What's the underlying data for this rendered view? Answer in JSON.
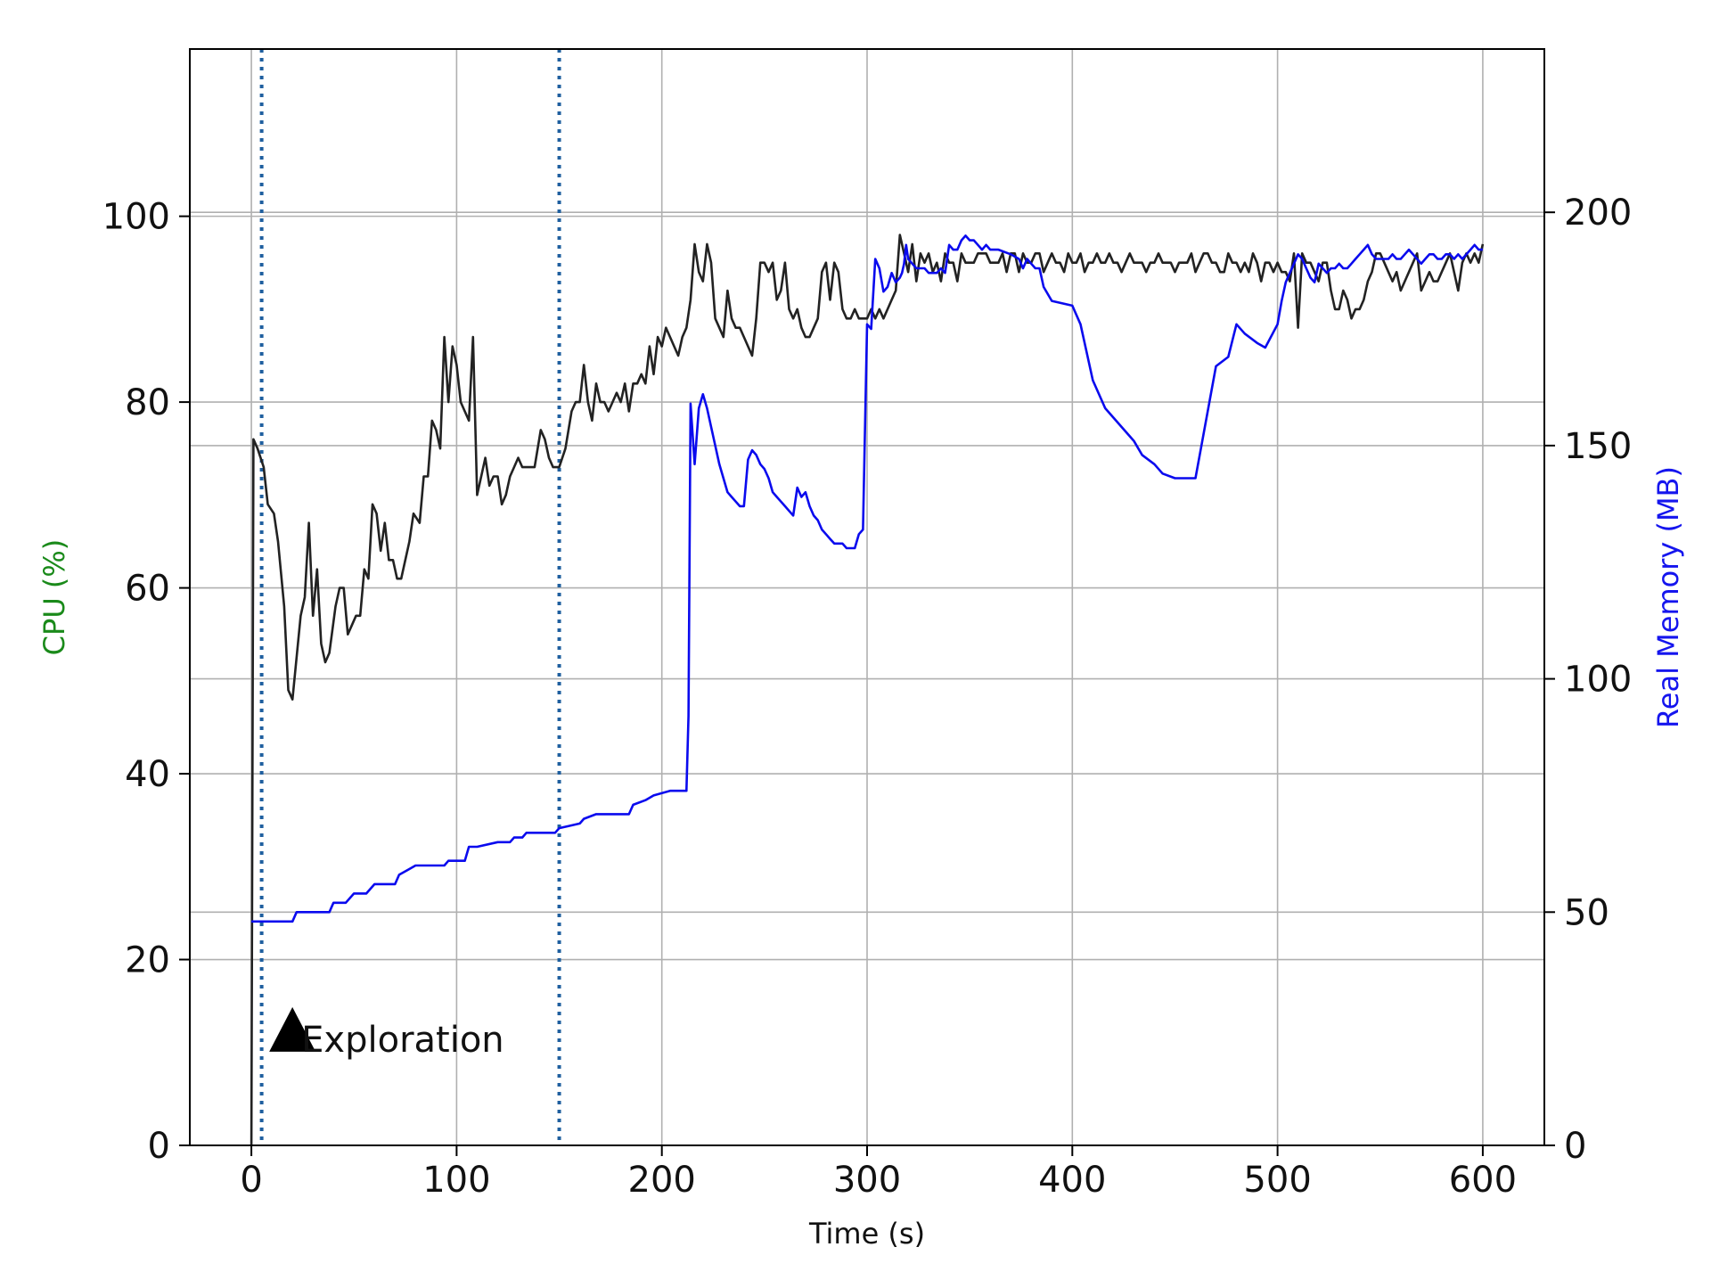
{
  "chart_data": {
    "type": "line",
    "xlabel": "Time (s)",
    "ylabel_left": "CPU (%)",
    "ylabel_right": "Real Memory (MB)",
    "xlim": [
      -30,
      630
    ],
    "ylim_left": [
      0,
      118
    ],
    "ylim_right": [
      0,
      235
    ],
    "x_ticks": [
      0,
      100,
      200,
      300,
      400,
      500,
      600
    ],
    "y_ticks_left": [
      0,
      20,
      40,
      60,
      80,
      100
    ],
    "y_ticks_right": [
      0,
      50,
      100,
      150,
      200
    ],
    "grid": true,
    "colors": {
      "cpu_line": "#222222",
      "memory_line": "#0a0aee",
      "left_axis_label": "#1a8a1a",
      "right_axis_label": "#1515ee",
      "phase_markers": "#1f5f9f",
      "grid": "#b0b0b0"
    },
    "phase_markers_x": [
      5,
      150
    ],
    "annotation": {
      "text": "Exploration",
      "x": 20,
      "y": 12
    },
    "series": [
      {
        "key": "cpu",
        "axis": "left",
        "x": [
          0,
          1,
          3,
          6,
          8,
          11,
          13,
          16,
          18,
          20,
          24,
          26,
          28,
          30,
          32,
          34,
          36,
          38,
          41,
          43,
          45,
          47,
          49,
          51,
          53,
          55,
          57,
          59,
          61,
          63,
          65,
          67,
          69,
          71,
          73,
          75,
          77,
          79,
          82,
          84,
          86,
          88,
          90,
          92,
          94,
          96,
          98,
          100,
          102,
          104,
          106,
          108,
          110,
          112,
          114,
          116,
          118,
          120,
          122,
          124,
          126,
          128,
          130,
          132,
          135,
          138,
          141,
          143,
          145,
          147,
          150,
          153,
          156,
          158,
          160,
          162,
          164,
          166,
          168,
          170,
          172,
          174,
          176,
          178,
          180,
          182,
          184,
          186,
          188,
          190,
          192,
          194,
          196,
          198,
          200,
          202,
          204,
          206,
          208,
          210,
          212,
          214,
          216,
          218,
          220,
          222,
          224,
          226,
          228,
          230,
          232,
          234,
          236,
          238,
          240,
          242,
          244,
          246,
          248,
          250,
          252,
          254,
          256,
          258,
          260,
          262,
          264,
          266,
          268,
          270,
          272,
          274,
          276,
          278,
          280,
          282,
          284,
          286,
          288,
          290,
          292,
          294,
          296,
          298,
          300,
          302,
          304,
          306,
          308,
          310,
          312,
          314,
          316,
          318,
          320,
          322,
          324,
          326,
          328,
          330,
          332,
          334,
          336,
          338,
          340,
          342,
          344,
          346,
          348,
          350,
          352,
          354,
          356,
          358,
          360,
          362,
          364,
          366,
          368,
          370,
          372,
          374,
          376,
          378,
          380,
          382,
          384,
          386,
          388,
          390,
          392,
          394,
          396,
          398,
          400,
          402,
          404,
          406,
          408,
          410,
          412,
          414,
          416,
          418,
          420,
          422,
          424,
          426,
          428,
          430,
          432,
          434,
          436,
          438,
          440,
          442,
          444,
          446,
          448,
          450,
          452,
          454,
          456,
          458,
          460,
          462,
          464,
          466,
          468,
          470,
          472,
          474,
          476,
          478,
          480,
          482,
          484,
          486,
          488,
          490,
          492,
          494,
          496,
          498,
          500,
          502,
          504,
          506,
          508,
          510,
          512,
          514,
          516,
          518,
          520,
          522,
          524,
          526,
          528,
          530,
          532,
          534,
          536,
          538,
          540,
          542,
          544,
          546,
          548,
          550,
          552,
          554,
          556,
          558,
          560,
          562,
          564,
          566,
          568,
          570,
          572,
          574,
          576,
          578,
          580,
          582,
          584,
          586,
          588,
          590,
          592,
          594,
          596,
          598,
          600
        ],
        "values": [
          0,
          76,
          75,
          73,
          69,
          68,
          65,
          58,
          49,
          48,
          57,
          59,
          67,
          57,
          62,
          54,
          52,
          53,
          58,
          60,
          60,
          55,
          56,
          57,
          57,
          62,
          61,
          69,
          68,
          64,
          67,
          63,
          63,
          61,
          61,
          63,
          65,
          68,
          67,
          72,
          72,
          78,
          77,
          75,
          87,
          80,
          86,
          84,
          80,
          79,
          78,
          87,
          70,
          72,
          74,
          71,
          72,
          72,
          69,
          70,
          72,
          73,
          74,
          73,
          73,
          73,
          77,
          76,
          74,
          73,
          73,
          75,
          79,
          80,
          80,
          84,
          80,
          78,
          82,
          80,
          80,
          79,
          80,
          81,
          80,
          82,
          79,
          82,
          82,
          83,
          82,
          86,
          83,
          87,
          86,
          88,
          87,
          86,
          85,
          87,
          88,
          91,
          97,
          94,
          93,
          97,
          95,
          89,
          88,
          87,
          92,
          89,
          88,
          88,
          87,
          86,
          85,
          89,
          95,
          95,
          94,
          95,
          91,
          92,
          95,
          90,
          89,
          90,
          88,
          87,
          87,
          88,
          89,
          94,
          95,
          91,
          95,
          94,
          90,
          89,
          89,
          90,
          89,
          89,
          89,
          90,
          89,
          90,
          89,
          90,
          91,
          92,
          98,
          96,
          94,
          97,
          93,
          96,
          95,
          96,
          94,
          95,
          93,
          96,
          95,
          95,
          93,
          96,
          95,
          95,
          95,
          96,
          96,
          96,
          95,
          95,
          95,
          96,
          94,
          96,
          96,
          94,
          96,
          95,
          95,
          96,
          96,
          94,
          95,
          96,
          95,
          95,
          94,
          96,
          95,
          95,
          96,
          94,
          95,
          95,
          96,
          95,
          95,
          96,
          95,
          95,
          94,
          95,
          96,
          95,
          95,
          95,
          94,
          95,
          95,
          96,
          95,
          95,
          95,
          94,
          95,
          95,
          95,
          96,
          94,
          95,
          96,
          96,
          95,
          95,
          94,
          94,
          96,
          95,
          95,
          94,
          95,
          94,
          96,
          95,
          93,
          95,
          95,
          94,
          95,
          94,
          94,
          93,
          96,
          88,
          96,
          95,
          95,
          94,
          93,
          95,
          95,
          92,
          90,
          90,
          92,
          91,
          89,
          90,
          90,
          91,
          93,
          94,
          96,
          96,
          95,
          94,
          93,
          94,
          92,
          93,
          94,
          95,
          96,
          92,
          93,
          94,
          93,
          93,
          94,
          95,
          96,
          94,
          92,
          95,
          96,
          95,
          96,
          95,
          97
        ]
      },
      {
        "key": "memory",
        "axis": "right",
        "x": [
          0,
          20,
          22,
          38,
          40,
          46,
          50,
          56,
          60,
          70,
          72,
          76,
          80,
          94,
          96,
          104,
          106,
          110,
          120,
          126,
          128,
          132,
          134,
          140,
          142,
          148,
          150,
          160,
          162,
          168,
          170,
          180,
          184,
          186,
          192,
          196,
          204,
          208,
          210,
          211,
          212,
          213,
          214,
          216,
          218,
          220,
          222,
          224,
          226,
          228,
          230,
          232,
          234,
          236,
          238,
          240,
          242,
          244,
          246,
          248,
          250,
          252,
          254,
          256,
          258,
          260,
          262,
          264,
          266,
          268,
          270,
          272,
          274,
          276,
          278,
          280,
          282,
          284,
          286,
          288,
          290,
          292,
          294,
          296,
          298,
          300,
          302,
          304,
          306,
          308,
          310,
          312,
          314,
          316,
          317,
          318,
          319,
          320,
          322,
          324,
          326,
          328,
          330,
          332,
          334,
          336,
          338,
          340,
          342,
          344,
          346,
          348,
          350,
          352,
          354,
          356,
          358,
          360,
          364,
          370,
          374,
          376,
          378,
          380,
          382,
          384,
          386,
          390,
          400,
          404,
          410,
          416,
          420,
          424,
          430,
          434,
          440,
          444,
          450,
          460,
          470,
          476,
          480,
          484,
          490,
          494,
          500,
          502,
          504,
          506,
          508,
          510,
          512,
          514,
          516,
          518,
          520,
          522,
          524,
          526,
          528,
          530,
          532,
          534,
          536,
          538,
          540,
          542,
          544,
          546,
          548,
          550,
          552,
          554,
          556,
          558,
          560,
          562,
          564,
          566,
          568,
          570,
          572,
          574,
          576,
          578,
          580,
          582,
          584,
          586,
          588,
          590,
          592,
          594,
          596,
          598,
          600
        ],
        "values": [
          48,
          48,
          50,
          50,
          52,
          52,
          54,
          54,
          56,
          56,
          58,
          59,
          60,
          60,
          61,
          61,
          64,
          64,
          65,
          65,
          66,
          66,
          67,
          67,
          67,
          67,
          68,
          69,
          70,
          71,
          71,
          71,
          71,
          73,
          74,
          75,
          76,
          76,
          76,
          76,
          76,
          92,
          159,
          146,
          158,
          161,
          158,
          154,
          150,
          146,
          143,
          140,
          139,
          138,
          137,
          137,
          147,
          149,
          148,
          146,
          145,
          143,
          140,
          139,
          138,
          137,
          136,
          135,
          141,
          139,
          140,
          137,
          135,
          134,
          132,
          131,
          130,
          129,
          129,
          129,
          128,
          128,
          128,
          131,
          132,
          176,
          175,
          190,
          188,
          183,
          184,
          187,
          185,
          186,
          187,
          189,
          193,
          190,
          189,
          188,
          188,
          188,
          187,
          187,
          187,
          188,
          187,
          193,
          192,
          192,
          194,
          195,
          194,
          194,
          193,
          192,
          193,
          192,
          192,
          191,
          190,
          188,
          190,
          189,
          188,
          188,
          184,
          181,
          180,
          176,
          164,
          158,
          156,
          154,
          151,
          148,
          146,
          144,
          143,
          143,
          167,
          169,
          176,
          174,
          172,
          171,
          176,
          181,
          185,
          187,
          189,
          191,
          190,
          188,
          186,
          185,
          189,
          188,
          187,
          188,
          188,
          189,
          188,
          188,
          189,
          190,
          191,
          192,
          193,
          191,
          190,
          190,
          190,
          190,
          191,
          190,
          190,
          191,
          192,
          191,
          190,
          189,
          190,
          191,
          191,
          190,
          190,
          191,
          191,
          190,
          191,
          190,
          191,
          192,
          193,
          192,
          192
        ]
      }
    ]
  }
}
